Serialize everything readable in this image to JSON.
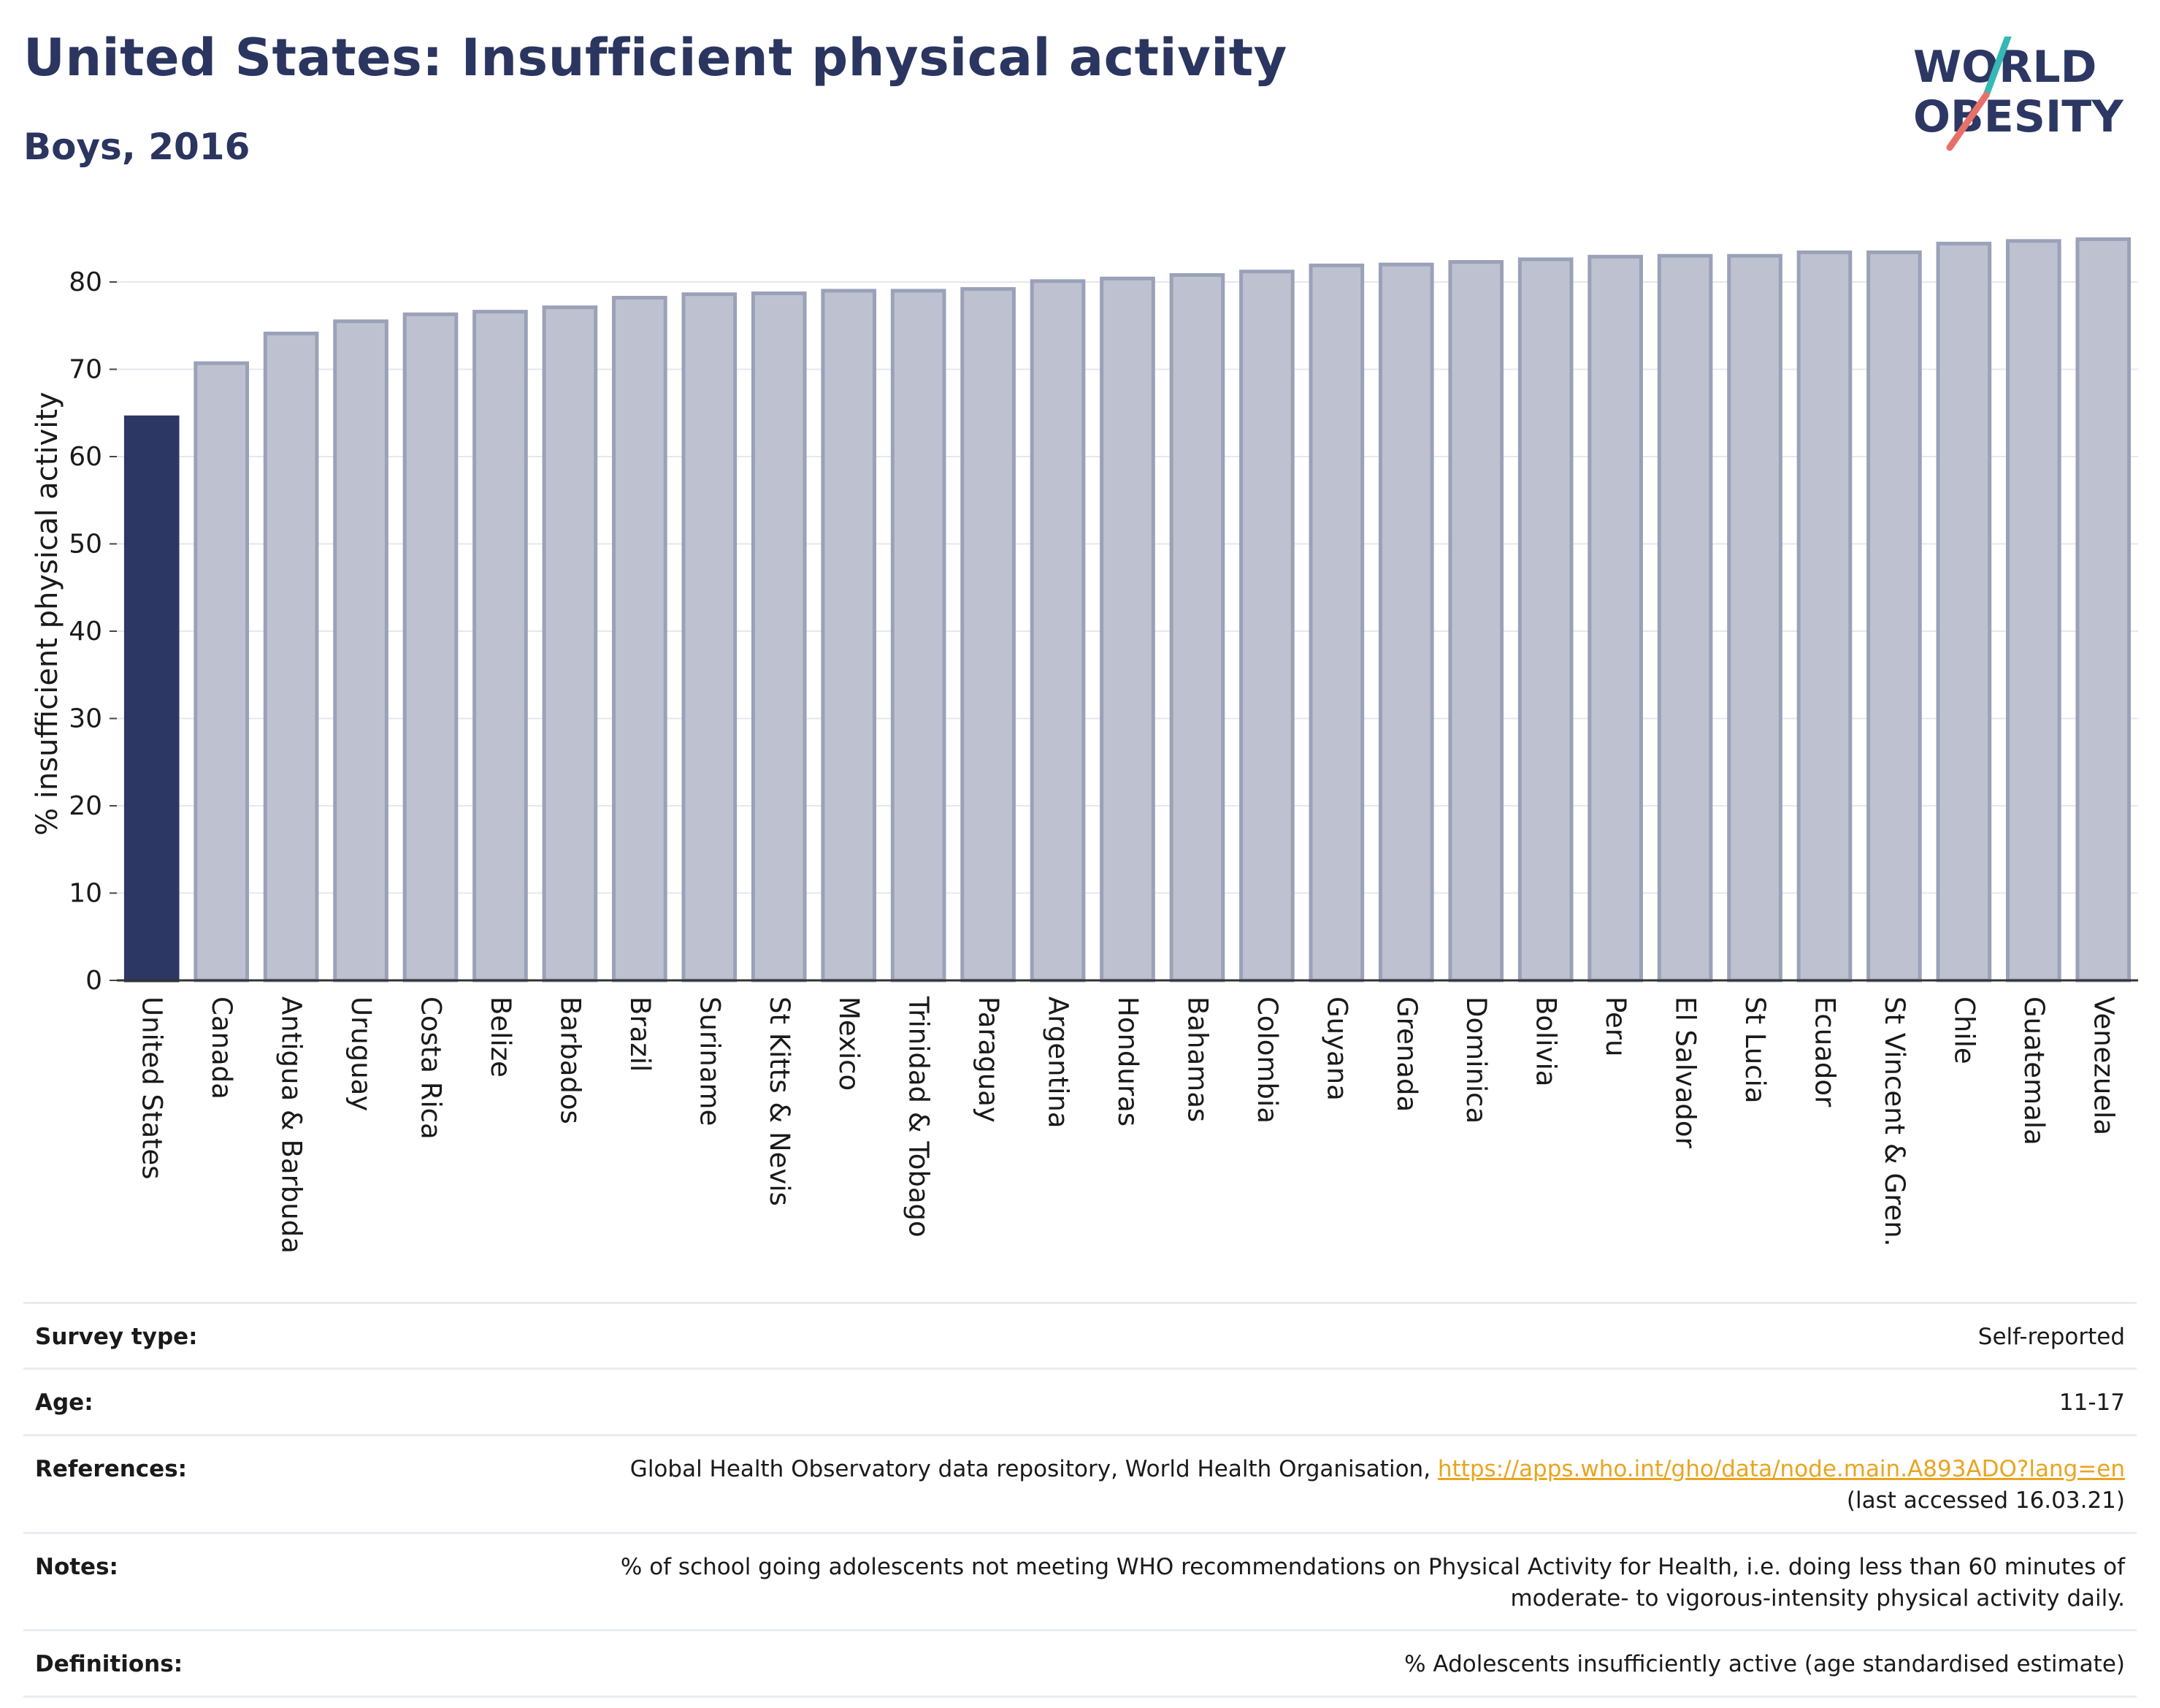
{
  "header": {
    "title": "United States: Insufficient physical activity",
    "subtitle": "Boys, 2016"
  },
  "logo": {
    "line1": "WORLD",
    "line2": "OBESITY"
  },
  "colors": {
    "highlight": "#2c3763",
    "bar": "#bec2d0",
    "bar_border": "#9aa1b8",
    "accent_teal": "#36b8b5",
    "accent_red": "#e8706a",
    "link": "#e9a520"
  },
  "chart_data": {
    "type": "bar",
    "ylabel": "% insufficient physical activity",
    "ylim": [
      0,
      85
    ],
    "yticks": [
      0,
      10,
      20,
      30,
      40,
      50,
      60,
      70,
      80
    ],
    "grid": true,
    "highlight_category": "United States",
    "categories": [
      "United States",
      "Canada",
      "Antigua & Barbuda",
      "Uruguay",
      "Costa Rica",
      "Belize",
      "Barbados",
      "Brazil",
      "Suriname",
      "St Kitts & Nevis",
      "Mexico",
      "Trinidad & Tobago",
      "Paraguay",
      "Argentina",
      "Honduras",
      "Bahamas",
      "Colombia",
      "Guyana",
      "Grenada",
      "Dominica",
      "Bolivia",
      "Peru",
      "El Salvador",
      "St Lucia",
      "Ecuador",
      "St Vincent & Gren.",
      "Chile",
      "Guatemala",
      "Venezuela"
    ],
    "values": [
      64.5,
      70.7,
      74.1,
      75.5,
      76.3,
      76.6,
      77.1,
      78.2,
      78.6,
      78.7,
      79.0,
      79.0,
      79.2,
      80.1,
      80.4,
      80.8,
      81.2,
      81.9,
      82.0,
      82.3,
      82.6,
      82.9,
      83.0,
      83.0,
      83.4,
      83.4,
      84.4,
      84.7,
      84.9
    ]
  },
  "info": {
    "survey_label": "Survey type:",
    "survey_value": "Self-reported",
    "age_label": "Age:",
    "age_value": "11-17",
    "ref_label": "References:",
    "ref_text": "Global Health Observatory data repository, World Health Organisation,",
    "ref_link": "https://apps.who.int/gho/data/node.main.A893ADO?lang=en",
    "ref_accessed": "(last accessed 16.03.21)",
    "notes_label": "Notes:",
    "notes_line1": "% of school going adolescents not meeting WHO recommendations on Physical Activity for Health, i.e. doing less than 60 minutes of",
    "notes_line2": "moderate- to vigorous-intensity physical activity daily.",
    "def_label": "Definitions:",
    "def_value": "% Adolescents insufficiently active (age standardised estimate)"
  }
}
